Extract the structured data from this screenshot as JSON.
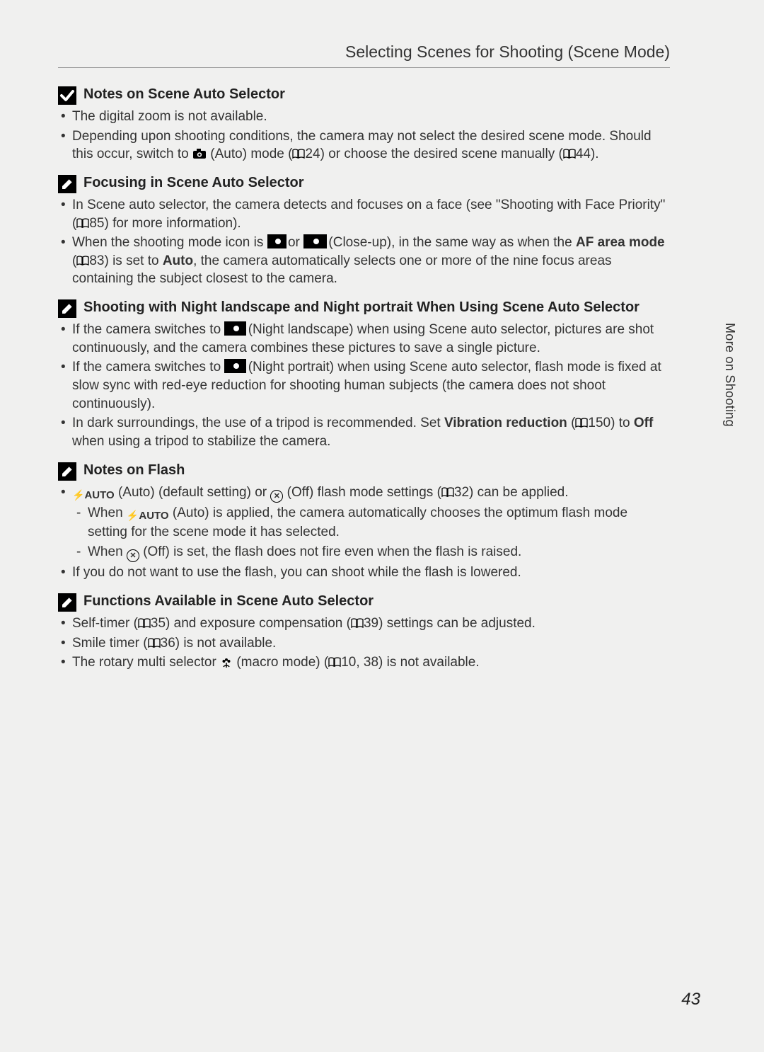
{
  "chapter": {
    "title": "Selecting Scenes for Shooting (Scene Mode)"
  },
  "side_tab": "More on Shooting",
  "page_number": "43",
  "sections": [
    {
      "icon": "check",
      "title": "Notes on Scene Auto Selector",
      "bullets": [
        {
          "parts": [
            {
              "t": "The digital zoom is not available."
            }
          ]
        },
        {
          "parts": [
            {
              "t": "Depending upon shooting conditions, the camera may not select the desired scene mode. Should this occur, switch to "
            },
            {
              "icon": "camera"
            },
            {
              "t": " (Auto) mode ("
            },
            {
              "icon": "book"
            },
            {
              "t": "24) or choose the desired scene manually ("
            },
            {
              "icon": "book"
            },
            {
              "t": "44)."
            }
          ]
        }
      ]
    },
    {
      "icon": "pencil",
      "title": "Focusing in Scene Auto Selector",
      "bullets": [
        {
          "parts": [
            {
              "t": "In Scene auto selector, the camera detects and focuses on a face (see \"Shooting with Face Priority\" ("
            },
            {
              "icon": "book"
            },
            {
              "t": "85) for more information)."
            }
          ]
        },
        {
          "parts": [
            {
              "t": "When the shooting mode icon is "
            },
            {
              "icon": "closeup1"
            },
            {
              "t": " or "
            },
            {
              "icon": "closeup2"
            },
            {
              "t": " (Close-up), in the same way as when the "
            },
            {
              "bold": "AF area mode"
            },
            {
              "t": " ("
            },
            {
              "icon": "book"
            },
            {
              "t": "83) is set to "
            },
            {
              "bold": "Auto"
            },
            {
              "t": ", the camera automatically selects one or more of the nine focus areas containing the subject closest to the camera."
            }
          ]
        }
      ]
    },
    {
      "icon": "pencil",
      "title": "Shooting with Night landscape and Night portrait When Using Scene Auto Selector",
      "bullets": [
        {
          "parts": [
            {
              "t": "If the camera switches to "
            },
            {
              "icon": "night-landscape"
            },
            {
              "t": " (Night landscape) when using Scene auto selector, pictures are shot continuously, and the camera combines these pictures to save a single picture."
            }
          ]
        },
        {
          "parts": [
            {
              "t": "If the camera switches to "
            },
            {
              "icon": "night-portrait"
            },
            {
              "t": " (Night portrait) when using Scene auto selector, flash mode is fixed at slow sync with red-eye reduction for shooting human subjects (the camera does not shoot continuously)."
            }
          ]
        },
        {
          "parts": [
            {
              "t": "In dark surroundings, the use of a tripod is recommended. Set "
            },
            {
              "bold": "Vibration reduction"
            },
            {
              "t": " ("
            },
            {
              "icon": "book"
            },
            {
              "t": "150) to "
            },
            {
              "bold": "Off"
            },
            {
              "t": " when using a tripod to stabilize the camera."
            }
          ]
        }
      ]
    },
    {
      "icon": "pencil",
      "title": "Notes on Flash",
      "bullets": [
        {
          "parts": [
            {
              "icon": "flash-auto"
            },
            {
              "t": " (Auto) (default setting) or "
            },
            {
              "icon": "off-circle"
            },
            {
              "t": " (Off) flash mode settings ("
            },
            {
              "icon": "book"
            },
            {
              "t": "32) can be applied."
            }
          ],
          "sub": [
            {
              "parts": [
                {
                  "t": "When "
                },
                {
                  "icon": "flash-auto"
                },
                {
                  "t": " (Auto) is applied, the camera automatically chooses the optimum flash mode setting for the scene mode it has selected."
                }
              ]
            },
            {
              "parts": [
                {
                  "t": "When "
                },
                {
                  "icon": "off-circle"
                },
                {
                  "t": " (Off) is set, the flash does not fire even when the flash is raised."
                }
              ]
            }
          ]
        },
        {
          "parts": [
            {
              "t": "If you do not want to use the flash, you can shoot while the flash is lowered."
            }
          ]
        }
      ]
    },
    {
      "icon": "pencil",
      "title": "Functions Available in Scene Auto Selector",
      "bullets": [
        {
          "parts": [
            {
              "t": "Self-timer ("
            },
            {
              "icon": "book"
            },
            {
              "t": "35) and exposure compensation ("
            },
            {
              "icon": "book"
            },
            {
              "t": "39) settings can be adjusted."
            }
          ]
        },
        {
          "parts": [
            {
              "t": "Smile timer ("
            },
            {
              "icon": "book"
            },
            {
              "t": "36) is not available."
            }
          ]
        },
        {
          "parts": [
            {
              "t": "The rotary multi selector "
            },
            {
              "icon": "flower"
            },
            {
              "t": " (macro mode) ("
            },
            {
              "icon": "book"
            },
            {
              "t": "10, 38) is not available."
            }
          ]
        }
      ]
    }
  ]
}
